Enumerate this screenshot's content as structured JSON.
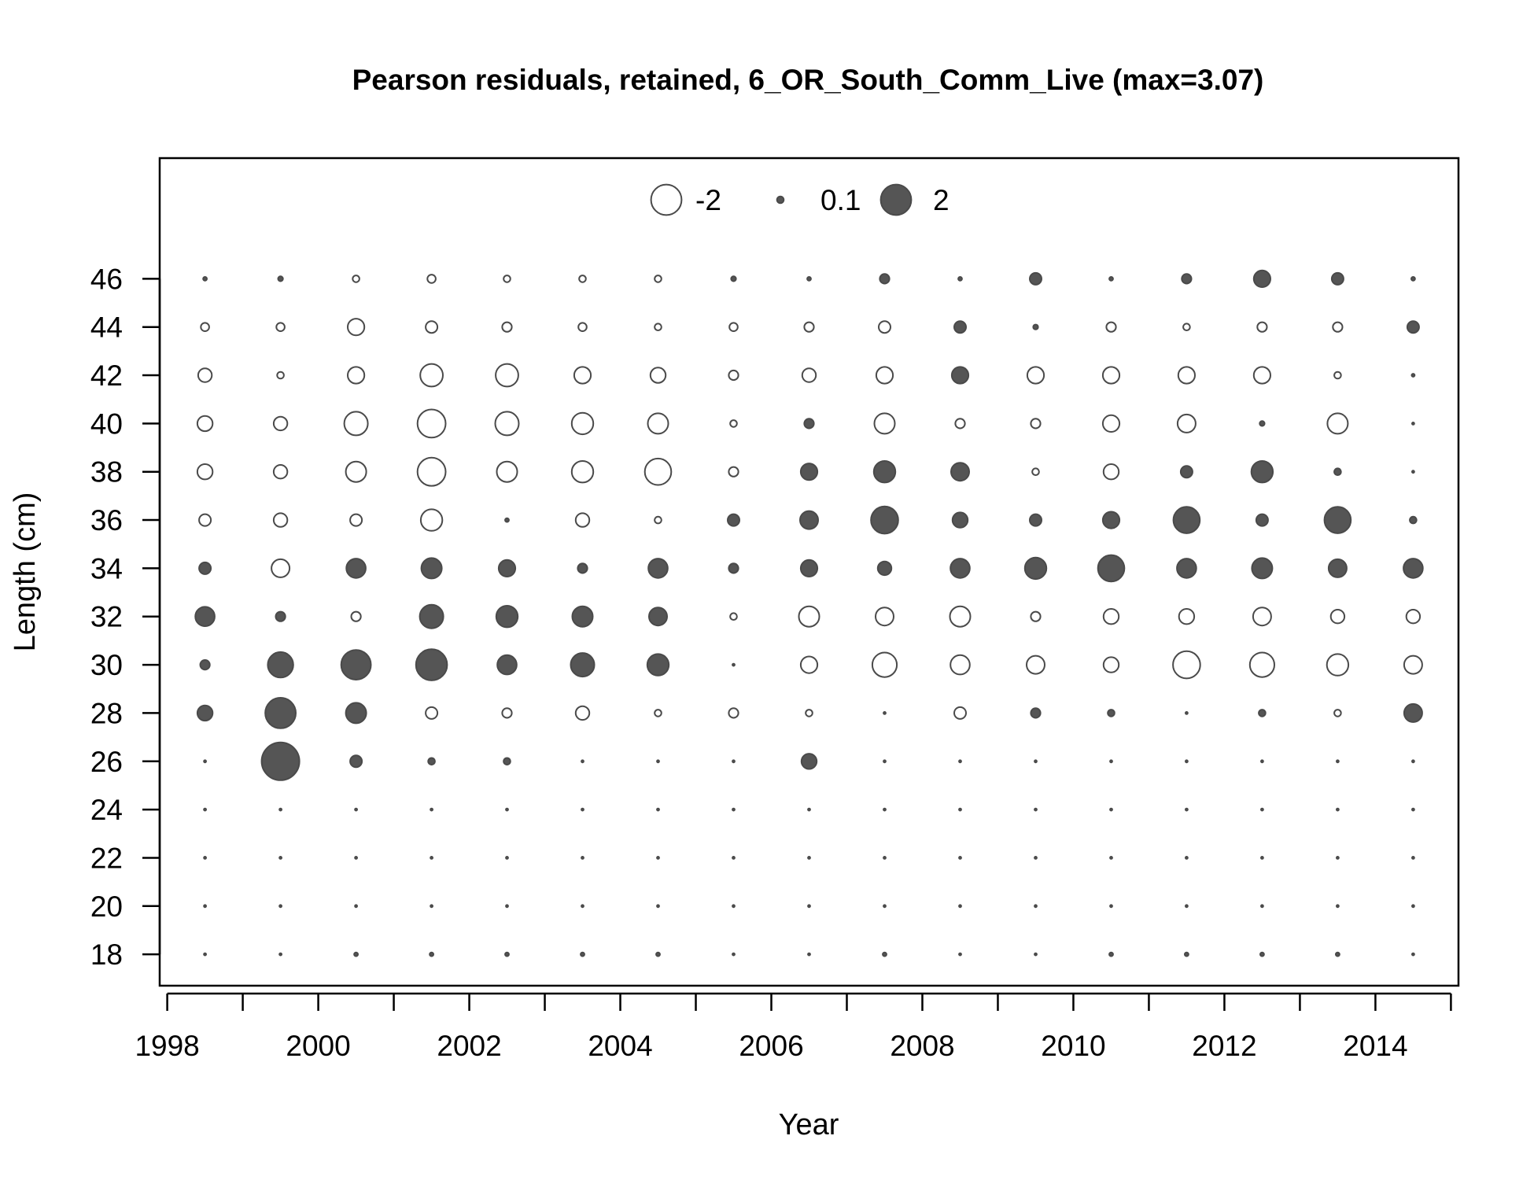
{
  "chart_data": {
    "type": "bubble",
    "title": "Pearson residuals, retained, 6_OR_South_Comm_Live (max=3.07)",
    "xlabel": "Year",
    "ylabel": "Length (cm)",
    "xlim": [
      1997.9,
      2015.1
    ],
    "ylim": [
      16.7,
      51
    ],
    "x_ticks": [
      1998,
      1999,
      2000,
      2001,
      2002,
      2003,
      2004,
      2005,
      2006,
      2007,
      2008,
      2009,
      2010,
      2011,
      2012,
      2013,
      2014,
      2015
    ],
    "x_tick_labels": [
      "1998",
      "2000",
      "2002",
      "2004",
      "2006",
      "2008",
      "2010",
      "2012",
      "2014"
    ],
    "y_ticks": [
      18,
      20,
      22,
      24,
      26,
      28,
      30,
      32,
      34,
      36,
      38,
      40,
      42,
      44,
      46
    ],
    "y_tick_labels": [
      "18",
      "20",
      "22",
      "24",
      "26",
      "28",
      "30",
      "32",
      "34",
      "36",
      "38",
      "40",
      "42",
      "44",
      "46"
    ],
    "years": [
      1998.5,
      1999.5,
      2000.5,
      2001.5,
      2002.5,
      2003.5,
      2004.5,
      2005.5,
      2006.5,
      2007.5,
      2008.5,
      2009.5,
      2010.5,
      2011.5,
      2012.5,
      2013.5,
      2014.5
    ],
    "lengths": [
      46,
      44,
      42,
      40,
      38,
      36,
      34,
      32,
      30,
      28,
      26,
      24,
      22,
      20,
      18
    ],
    "residuals": [
      [
        0.03,
        0.05,
        -0.1,
        -0.15,
        -0.1,
        -0.1,
        -0.1,
        0.05,
        0.03,
        0.2,
        0.03,
        0.3,
        0.03,
        0.2,
        0.6,
        0.3,
        0.03
      ],
      [
        -0.15,
        -0.15,
        -0.6,
        -0.3,
        -0.2,
        -0.15,
        -0.1,
        -0.15,
        -0.2,
        -0.3,
        0.3,
        0.05,
        -0.2,
        -0.1,
        -0.2,
        -0.2,
        0.3
      ],
      [
        -0.4,
        -0.1,
        -0.6,
        -1.1,
        -1.1,
        -0.6,
        -0.5,
        -0.2,
        -0.4,
        -0.6,
        0.6,
        -0.6,
        -0.6,
        -0.6,
        -0.6,
        -0.1,
        0.02
      ],
      [
        -0.5,
        -0.4,
        -1.2,
        -1.7,
        -1.2,
        -1.0,
        -0.9,
        -0.1,
        0.2,
        -0.9,
        -0.2,
        -0.2,
        -0.6,
        -0.7,
        0.05,
        -0.9,
        0.01
      ],
      [
        -0.5,
        -0.4,
        -0.9,
        -1.7,
        -0.9,
        -1.0,
        -1.5,
        -0.2,
        0.6,
        1.0,
        0.7,
        -0.1,
        -0.5,
        0.3,
        1.0,
        0.1,
        0.01
      ],
      [
        -0.3,
        -0.4,
        -0.3,
        -1.0,
        0.03,
        -0.4,
        -0.1,
        0.3,
        0.7,
        1.6,
        0.5,
        0.3,
        0.6,
        1.5,
        0.3,
        1.5,
        0.1
      ],
      [
        0.3,
        -0.7,
        0.8,
        0.9,
        0.6,
        0.2,
        0.8,
        0.2,
        0.6,
        0.4,
        0.8,
        1.0,
        1.5,
        0.8,
        0.9,
        0.7,
        0.8
      ],
      [
        0.8,
        0.2,
        -0.2,
        1.2,
        1.0,
        0.9,
        0.7,
        -0.1,
        -0.9,
        -0.7,
        -0.9,
        -0.2,
        -0.5,
        -0.5,
        -0.7,
        -0.4,
        -0.4
      ],
      [
        0.2,
        1.4,
        1.9,
        2.1,
        0.8,
        1.2,
        1.0,
        0.01,
        -0.6,
        -1.3,
        -0.8,
        -0.7,
        -0.5,
        -1.6,
        -1.3,
        -1.0,
        -0.7
      ],
      [
        0.5,
        2.0,
        0.9,
        -0.3,
        -0.2,
        -0.4,
        -0.1,
        -0.2,
        -0.1,
        0.01,
        -0.3,
        0.2,
        0.1,
        0.01,
        0.1,
        -0.1,
        0.7
      ],
      [
        0.01,
        3.07,
        0.3,
        0.1,
        0.1,
        0.01,
        0.01,
        0.01,
        0.5,
        0.01,
        0.01,
        0.01,
        0.01,
        0.01,
        0.01,
        0.01,
        0.01
      ],
      [
        0.01,
        0.01,
        0.01,
        0.01,
        0.01,
        0.01,
        0.01,
        0.01,
        0.01,
        0.01,
        0.01,
        0.01,
        0.01,
        0.01,
        0.01,
        0.01,
        0.01
      ],
      [
        0.01,
        0.01,
        0.01,
        0.01,
        0.01,
        0.01,
        0.01,
        0.01,
        0.01,
        0.01,
        0.01,
        0.01,
        0.01,
        0.01,
        0.01,
        0.01,
        0.01
      ],
      [
        0.01,
        0.01,
        0.01,
        0.01,
        0.01,
        0.01,
        0.01,
        0.01,
        0.01,
        0.01,
        0.01,
        0.01,
        0.01,
        0.01,
        0.01,
        0.01,
        0.01
      ],
      [
        0.01,
        0.01,
        0.03,
        0.03,
        0.03,
        0.03,
        0.03,
        0.01,
        0.01,
        0.03,
        0.01,
        0.01,
        0.03,
        0.03,
        0.03,
        0.03,
        0.01
      ]
    ],
    "legend": {
      "placement": "top",
      "entries": [
        {
          "label": "-2",
          "value": -2
        },
        {
          "label": "0.1",
          "value": 0.1
        },
        {
          "label": "2",
          "value": 2
        }
      ]
    },
    "max_residual": 3.07,
    "grid": false,
    "colors": {
      "positive_fill": "#555555",
      "negative_fill": "#ffffff",
      "outline": "#4a4a4a"
    }
  }
}
